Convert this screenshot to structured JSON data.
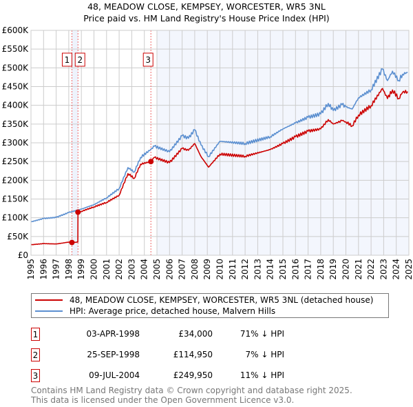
{
  "chart_data": {
    "type": "line",
    "title": "48, MEADOW CLOSE, KEMPSEY, WORCESTER, WR5 3NL",
    "subtitle": "Price paid vs. HM Land Registry's House Price Index (HPI)",
    "xlim": [
      1995,
      2025
    ],
    "ylim": [
      0,
      600000
    ],
    "x_ticks": [
      "1995",
      "1996",
      "1997",
      "1998",
      "1999",
      "2000",
      "2001",
      "2002",
      "2003",
      "2004",
      "2005",
      "2006",
      "2007",
      "2008",
      "2009",
      "2010",
      "2011",
      "2012",
      "2013",
      "2014",
      "2015",
      "2016",
      "2017",
      "2018",
      "2019",
      "2020",
      "2021",
      "2022",
      "2023",
      "2024",
      "2025"
    ],
    "y_ticks": [
      {
        "value": 0,
        "label": "£0"
      },
      {
        "value": 50000,
        "label": "£50K"
      },
      {
        "value": 100000,
        "label": "£100K"
      },
      {
        "value": 150000,
        "label": "£150K"
      },
      {
        "value": 200000,
        "label": "£200K"
      },
      {
        "value": 250000,
        "label": "£250K"
      },
      {
        "value": 300000,
        "label": "£300K"
      },
      {
        "value": 350000,
        "label": "£350K"
      },
      {
        "value": 400000,
        "label": "£400K"
      },
      {
        "value": 450000,
        "label": "£450K"
      },
      {
        "value": 500000,
        "label": "£500K"
      },
      {
        "value": 550000,
        "label": "£550K"
      },
      {
        "value": 600000,
        "label": "£600K"
      }
    ],
    "grid": true,
    "series": [
      {
        "name": "48, MEADOW CLOSE, KEMPSEY, WORCESTER, WR5 3NL (detached house)",
        "color": "#cc0000",
        "x": [
          1995,
          1996,
          1997,
          1998,
          1998.25,
          1998.72,
          1998.73,
          1999,
          2000,
          2001,
          2002,
          2002.7,
          2003.2,
          2003.7,
          2004.52,
          2004.8,
          2006,
          2007,
          2007.5,
          2008,
          2008.5,
          2009.1,
          2010,
          2012,
          2014,
          2015,
          2016,
          2017,
          2018,
          2018.6,
          2019,
          2019.7,
          2020,
          2020.5,
          2021,
          2022,
          2022.9,
          2023.3,
          2023.7,
          2024.2,
          2024.5,
          2024.9
        ],
        "y": [
          28000,
          31000,
          30000,
          35000,
          34000,
          35000,
          114950,
          117000,
          129000,
          141000,
          160000,
          218000,
          205000,
          243000,
          249950,
          261000,
          247000,
          285000,
          280000,
          298000,
          263000,
          235000,
          270000,
          264000,
          282000,
          298000,
          316000,
          331000,
          337000,
          362000,
          350000,
          359000,
          356000,
          345000,
          374000,
          399000,
          445000,
          418000,
          441000,
          418000,
          435000,
          437000
        ]
      },
      {
        "name": "HPI: Average price, detached house, Malvern Hills",
        "color": "#5b8fd0",
        "x": [
          1995,
          1996,
          1997,
          1998,
          1999,
          2000,
          2001,
          2002,
          2002.7,
          2003.2,
          2003.7,
          2004.5,
          2004.8,
          2006,
          2007,
          2007.5,
          2008,
          2008.5,
          2009.1,
          2010,
          2012,
          2014,
          2015,
          2016,
          2017,
          2018,
          2018.6,
          2019,
          2019.7,
          2020,
          2020.5,
          2021,
          2022,
          2022.9,
          2023.3,
          2023.7,
          2024.2,
          2024.5,
          2024.9
        ],
        "y": [
          89000,
          98000,
          101000,
          114000,
          123000,
          135000,
          153000,
          178000,
          234000,
          222000,
          261000,
          282000,
          291000,
          276000,
          319000,
          312000,
          335000,
          294000,
          263000,
          304000,
          298000,
          316000,
          337000,
          353000,
          368000,
          377000,
          405000,
          386000,
          402000,
          396000,
          390000,
          420000,
          441000,
          497000,
          466000,
          491000,
          466000,
          483000,
          488000
        ]
      }
    ],
    "sales": [
      {
        "id": "1",
        "x": 1998.25,
        "price": 34000
      },
      {
        "id": "2",
        "x": 1998.73,
        "price": 114950
      },
      {
        "id": "3",
        "x": 2004.52,
        "price": 249950
      }
    ]
  },
  "legend": {
    "property": "48, MEADOW CLOSE, KEMPSEY, WORCESTER, WR5 3NL (detached house)",
    "hpi": "HPI: Average price, detached house, Malvern Hills"
  },
  "transactions": [
    {
      "num": "1",
      "date": "03-APR-1998",
      "price": "£34,000",
      "pct": "71% ↓ HPI"
    },
    {
      "num": "2",
      "date": "25-SEP-1998",
      "price": "£114,950",
      "pct": "7% ↓ HPI"
    },
    {
      "num": "3",
      "date": "09-JUL-2004",
      "price": "£249,950",
      "pct": "11% ↓ HPI"
    }
  ],
  "footer": {
    "line1": "Contains HM Land Registry data © Crown copyright and database right 2025.",
    "line2": "This data is licensed under the Open Government Licence v3.0."
  }
}
